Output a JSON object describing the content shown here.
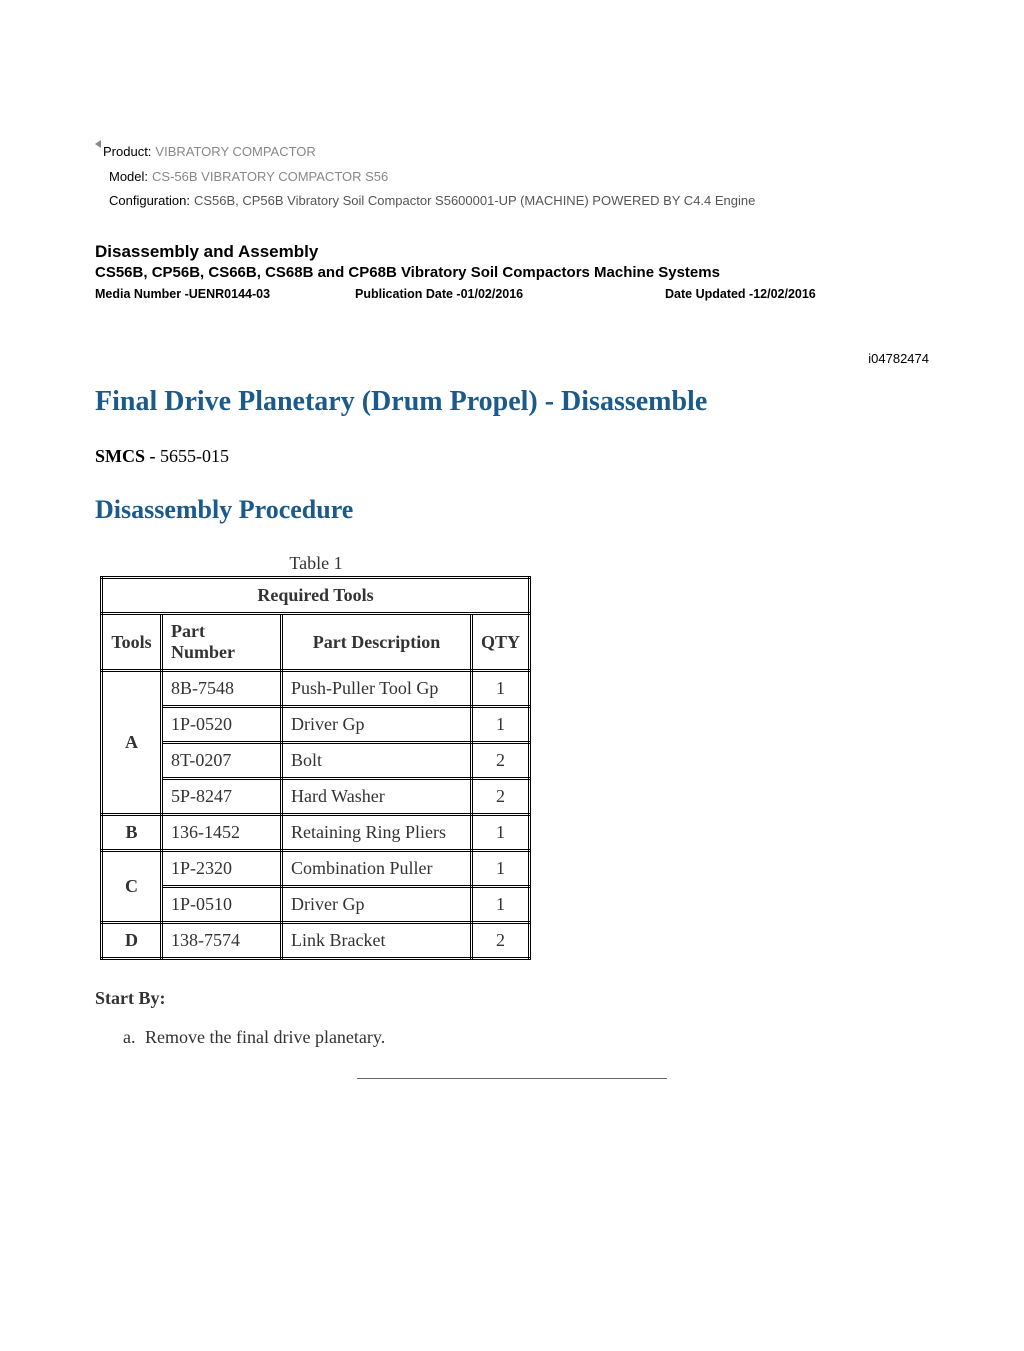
{
  "meta": {
    "productLabel": "Product:",
    "productValue": "VIBRATORY COMPACTOR",
    "modelLabel": "Model:",
    "modelValue": "CS-56B VIBRATORY COMPACTOR S56",
    "configLabel": "Configuration:",
    "configValue": "CS56B, CP56B Vibratory Soil Compactor S5600001-UP (MACHINE) POWERED BY C4.4 Engine"
  },
  "section": {
    "title": "Disassembly and Assembly",
    "subtitle": "CS56B, CP56B, CS66B, CS68B and CP68B Vibratory Soil Compactors Machine Systems"
  },
  "pub": {
    "media": "Media Number -UENR0144-03",
    "date": "Publication Date -01/02/2016",
    "updated": "Date Updated -12/02/2016"
  },
  "docId": "i04782474",
  "titles": {
    "main": "Final Drive Planetary (Drum Propel) - Disassemble",
    "procedure": "Disassembly Procedure"
  },
  "smcs": {
    "label": "SMCS - ",
    "code": "5655-015"
  },
  "table": {
    "caption": "Table 1",
    "title": "Required Tools",
    "headers": {
      "tools": "Tools",
      "partNumber": "Part Number",
      "partDescription": "Part Description",
      "qty": "QTY"
    },
    "groups": [
      {
        "letter": "A",
        "rows": [
          {
            "pn": "8B-7548",
            "desc": "Push-Puller Tool Gp",
            "qty": "1"
          },
          {
            "pn": "1P-0520",
            "desc": "Driver Gp",
            "qty": "1"
          },
          {
            "pn": "8T-0207",
            "desc": "Bolt",
            "qty": "2"
          },
          {
            "pn": "5P-8247",
            "desc": "Hard Washer",
            "qty": "2"
          }
        ]
      },
      {
        "letter": "B",
        "rows": [
          {
            "pn": "136-1452",
            "desc": "Retaining Ring Pliers",
            "qty": "1"
          }
        ]
      },
      {
        "letter": "C",
        "rows": [
          {
            "pn": "1P-2320",
            "desc": "Combination Puller",
            "qty": "1"
          },
          {
            "pn": "1P-0510",
            "desc": "Driver Gp",
            "qty": "1"
          }
        ]
      },
      {
        "letter": "D",
        "rows": [
          {
            "pn": "138-7574",
            "desc": "Link Bracket",
            "qty": "2"
          }
        ]
      }
    ]
  },
  "startBy": {
    "label": "Start By:",
    "items": [
      "Remove the final drive planetary."
    ]
  }
}
